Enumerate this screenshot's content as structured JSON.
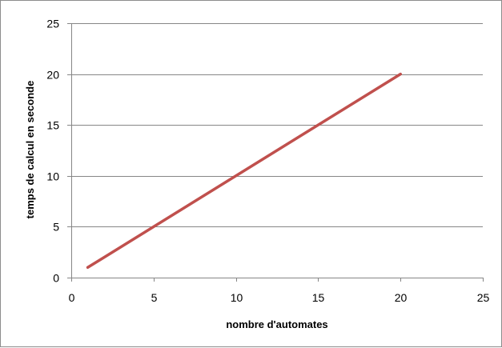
{
  "chart_data": {
    "type": "line",
    "title": "",
    "xlabel": "nombre d'automates",
    "ylabel": "temps de calcul  en seconde",
    "xlim": [
      0,
      25
    ],
    "ylim": [
      0,
      25
    ],
    "x_ticks": [
      0,
      5,
      10,
      15,
      20,
      25
    ],
    "y_ticks": [
      0,
      5,
      10,
      15,
      20,
      25
    ],
    "grid": "horizontal",
    "legend": "none",
    "series": [
      {
        "color": "#c0504d",
        "x": [
          1,
          20
        ],
        "y": [
          1,
          20
        ]
      }
    ]
  }
}
